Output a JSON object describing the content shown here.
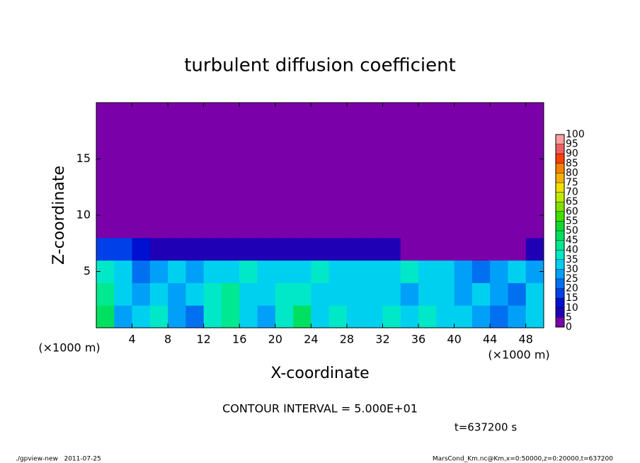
{
  "chart_data": {
    "type": "heatmap",
    "title": "turbulent diffusion coefficient",
    "x_label": "X-coordinate",
    "y_label": "Z-coordinate",
    "x_unit_label": "(×1000 m)",
    "y_unit_label": "(×1000 m)",
    "x": [
      1,
      3,
      5,
      7,
      9,
      11,
      13,
      15,
      17,
      19,
      21,
      23,
      25,
      27,
      29,
      31,
      33,
      35,
      37,
      39,
      41,
      43,
      45,
      47,
      49
    ],
    "y": [
      1,
      3,
      5,
      7,
      9,
      11,
      13,
      15,
      17,
      19
    ],
    "values": [
      [
        45,
        25,
        30,
        35,
        25,
        20,
        35,
        40,
        30,
        25,
        35,
        45,
        30,
        35,
        30,
        30,
        35,
        30,
        35,
        30,
        30,
        25,
        20,
        25,
        30
      ],
      [
        40,
        30,
        25,
        30,
        25,
        30,
        35,
        40,
        30,
        30,
        35,
        35,
        30,
        30,
        30,
        30,
        30,
        25,
        30,
        30,
        25,
        30,
        25,
        20,
        30
      ],
      [
        35,
        30,
        20,
        25,
        30,
        25,
        30,
        30,
        35,
        30,
        30,
        30,
        35,
        30,
        30,
        30,
        30,
        35,
        30,
        30,
        25,
        20,
        25,
        30,
        25
      ],
      [
        15,
        15,
        10,
        5,
        5,
        5,
        5,
        5,
        5,
        5,
        5,
        5,
        5,
        5,
        5,
        5,
        5,
        0,
        0,
        0,
        0,
        0,
        0,
        0,
        5
      ],
      [
        0,
        0,
        0,
        0,
        0,
        0,
        0,
        0,
        0,
        0,
        0,
        0,
        0,
        0,
        0,
        0,
        0,
        0,
        0,
        0,
        0,
        0,
        0,
        0,
        0
      ],
      [
        0,
        0,
        0,
        0,
        0,
        0,
        0,
        0,
        0,
        0,
        0,
        0,
        0,
        0,
        0,
        0,
        0,
        0,
        0,
        0,
        0,
        0,
        0,
        0,
        0
      ],
      [
        0,
        0,
        0,
        0,
        0,
        0,
        0,
        0,
        0,
        0,
        0,
        0,
        0,
        0,
        0,
        0,
        0,
        0,
        0,
        0,
        0,
        0,
        0,
        0,
        0
      ],
      [
        0,
        0,
        0,
        0,
        0,
        0,
        0,
        0,
        0,
        0,
        0,
        0,
        0,
        0,
        0,
        0,
        0,
        0,
        0,
        0,
        0,
        0,
        0,
        0,
        0
      ],
      [
        0,
        0,
        0,
        0,
        0,
        0,
        0,
        0,
        0,
        0,
        0,
        0,
        0,
        0,
        0,
        0,
        0,
        0,
        0,
        0,
        0,
        0,
        0,
        0,
        0
      ],
      [
        0,
        0,
        0,
        0,
        0,
        0,
        0,
        0,
        0,
        0,
        0,
        0,
        0,
        0,
        0,
        0,
        0,
        0,
        0,
        0,
        0,
        0,
        0,
        0,
        0
      ]
    ],
    "xlim": [
      0,
      50
    ],
    "xticks": [
      4,
      8,
      12,
      16,
      20,
      24,
      28,
      32,
      36,
      40,
      44,
      48
    ],
    "ylim": [
      0,
      20
    ],
    "yticks": [
      5,
      10,
      15
    ],
    "levels": [
      0,
      5,
      10,
      15,
      20,
      25,
      30,
      35,
      40,
      45,
      50,
      55,
      60,
      65,
      70,
      75,
      80,
      85,
      90,
      95,
      100
    ],
    "colors": [
      "#7a00aa",
      "#2000b4",
      "#0010d0",
      "#0040e8",
      "#0070f0",
      "#00a0f8",
      "#00d0f0",
      "#00e8c8",
      "#00e890",
      "#00e060",
      "#10d830",
      "#40e000",
      "#80e000",
      "#c0e800",
      "#f0e000",
      "#f8b000",
      "#f88000",
      "#f84000",
      "#f06060",
      "#f8a0a0"
    ],
    "contour_interval_text": "CONTOUR INTERVAL = 5.000E+01",
    "time_text": "t=637200 s",
    "footer_left": "./gpview-new   2011-07-25",
    "footer_right": "MarsCond_Km.nc@Km,x=0:50000,z=0:20000,t=637200"
  }
}
